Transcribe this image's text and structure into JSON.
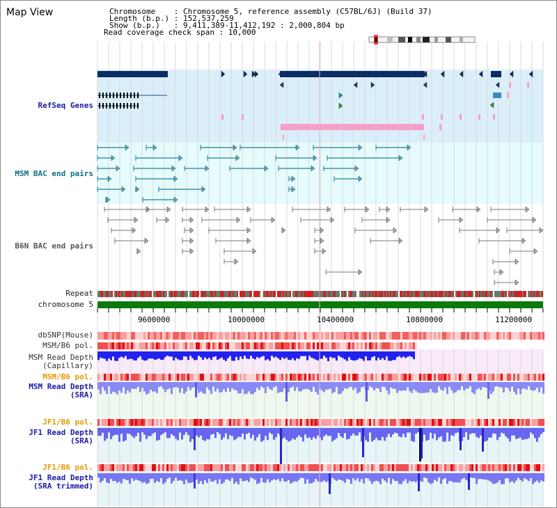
{
  "page_title": "Map View",
  "header": {
    "line1": "Chromosome    : Chromosome 5, reference assembly (C57BL/6J) (Build 37)",
    "line2": "Length (b.p.) : 152,537,259",
    "line3": "Show (b.p.)   : 9,411,389-11,412,192 : 2,000,804 bp",
    "line4": "Read coverage check span : 10,000"
  },
  "labels": {
    "refseq": "RefSeq Genes",
    "msm_bac": "MSM BAC end pairs",
    "b6n_bac": "B6N BAC end pairs",
    "repeat": "Repeat",
    "chromosome": "chromosome 5",
    "dbsnp": "dbSNP(Mouse)",
    "msm_b6_pol": "MSM/B6 pol.",
    "msm_depth_cap_1": "MSM Read Depth",
    "msm_depth_cap_2": "(Capillary)",
    "msm_b6_pol2": "MSM/B6 pol.",
    "msm_depth_sra_1": "MSM Read Depth",
    "msm_depth_sra_2": "(SRA)",
    "jf1_b6_pol": "JF1/B6 pol.",
    "jf1_depth_sra_1": "JF1 Read Depth",
    "jf1_depth_sra_2": "(SRA)",
    "jf1_b6_pol2": "JF1/B6 pol.",
    "jf1_depth_trim_1": "JF1 Read Depth",
    "jf1_depth_trim_2": "(SRA trimmed)"
  },
  "axis": {
    "start_bp": 9411389,
    "end_bp": 11412192,
    "ticks": [
      "9600000",
      "10000000",
      "10400000",
      "10800000",
      "11200000"
    ]
  },
  "colors": {
    "refseq_bg": "#dbeffa",
    "msm_bg": "#e6fbfb",
    "gene_dark": "#0b2c64",
    "gene_pink": "#f4a0c8",
    "chromosome": "#0b7a0b",
    "depth_blue": "#2b2bf0",
    "depth_light": "#8a8af5",
    "pol_red": "#e63030",
    "grid": "#d8d8d8"
  }
}
